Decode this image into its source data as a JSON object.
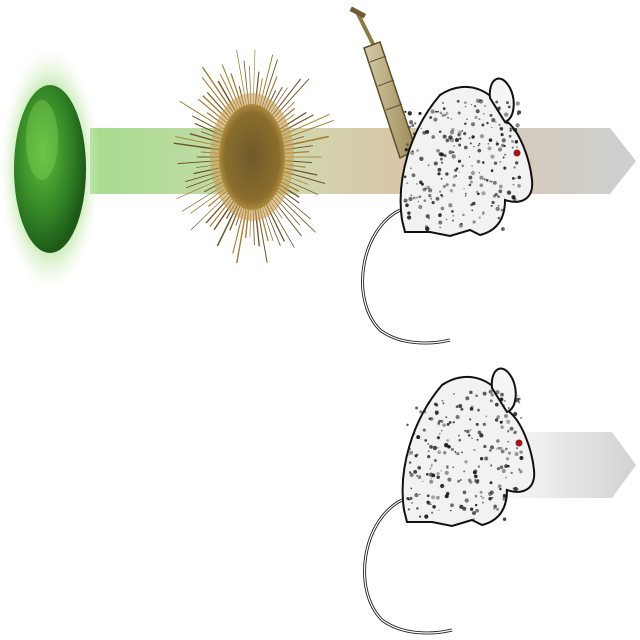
{
  "diagram": {
    "rows": [
      {
        "stages": [
          {
            "icon": "green-cell-icon",
            "color": "#3f9a2e"
          },
          {
            "icon": "spiky-spore-cell-icon",
            "color": "#a47a2c"
          },
          {
            "icon": "syringe-icon",
            "color": "#8c7840"
          },
          {
            "icon": "mouse-icon",
            "color": "#1a1a1a"
          }
        ],
        "arrow_colors": [
          "#9dd58a",
          "#c9b48c",
          "#c9c9c9"
        ]
      },
      {
        "stages": [
          {
            "icon": "mouse-icon",
            "color": "#1a1a1a"
          }
        ],
        "arrow_colors": [
          "#ffffff",
          "#d0d0d0"
        ]
      }
    ]
  }
}
